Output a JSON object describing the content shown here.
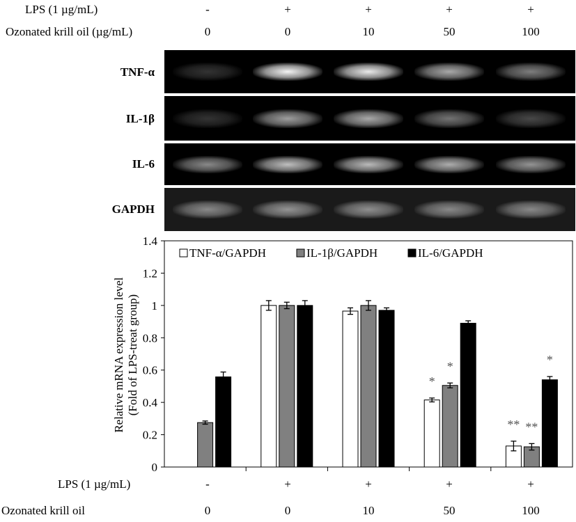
{
  "top_conditions": {
    "lps_label": "LPS (1 µg/mL)",
    "lps_values": [
      "-",
      "+",
      "+",
      "+",
      "+"
    ],
    "oil_label": "Ozonated krill oil (µg/mL)",
    "oil_values": [
      "0",
      "0",
      "10",
      "50",
      "100"
    ]
  },
  "gel": {
    "rows": [
      {
        "label": "TNF-α",
        "intensity": [
          0.05,
          0.95,
          0.9,
          0.6,
          0.4
        ]
      },
      {
        "label": "IL-1β",
        "intensity": [
          0.05,
          0.55,
          0.6,
          0.35,
          0.15
        ]
      },
      {
        "label": "IL-6",
        "intensity": [
          0.45,
          0.7,
          0.68,
          0.62,
          0.5
        ]
      },
      {
        "label": "GAPDH",
        "intensity": [
          0.45,
          0.5,
          0.48,
          0.45,
          0.45
        ]
      }
    ]
  },
  "chart_data": {
    "type": "bar",
    "ylabel": "Relative mRNA expression level (Fold of LPS-treat group)",
    "ylim": [
      0,
      1.4
    ],
    "yticks": [
      "0",
      "0.2",
      "0.4",
      "0.6",
      "0.8",
      "1",
      "1.2",
      "1.4"
    ],
    "legend_position": "top",
    "series": [
      {
        "name": "TNF-α/GAPDH",
        "color": "#ffffff",
        "values": [
          0,
          1.0,
          0.965,
          0.415,
          0.13
        ],
        "errors": [
          0,
          0.03,
          0.02,
          0.012,
          0.03
        ],
        "marks": [
          "",
          "",
          "",
          "*",
          "**"
        ]
      },
      {
        "name": "IL-1β/GAPDH",
        "color": "#808080",
        "values": [
          0.275,
          1.0,
          1.0,
          0.505,
          0.125
        ],
        "errors": [
          0.01,
          0.02,
          0.03,
          0.015,
          0.02
        ],
        "marks": [
          "",
          "",
          "",
          "*",
          "**"
        ]
      },
      {
        "name": "IL-6/GAPDH",
        "color": "#000000",
        "values": [
          0.558,
          1.0,
          0.97,
          0.89,
          0.54
        ],
        "errors": [
          0.03,
          0.03,
          0.015,
          0.015,
          0.02
        ],
        "marks": [
          "",
          "",
          "",
          "",
          "*"
        ]
      }
    ]
  },
  "bottom_conditions": {
    "lps_label": "LPS (1 µg/mL)",
    "lps_values": [
      "-",
      "+",
      "+",
      "+",
      "+"
    ],
    "oil_label": "Ozonated krill oil",
    "oil_values": [
      "0",
      "0",
      "10",
      "50",
      "100"
    ]
  }
}
